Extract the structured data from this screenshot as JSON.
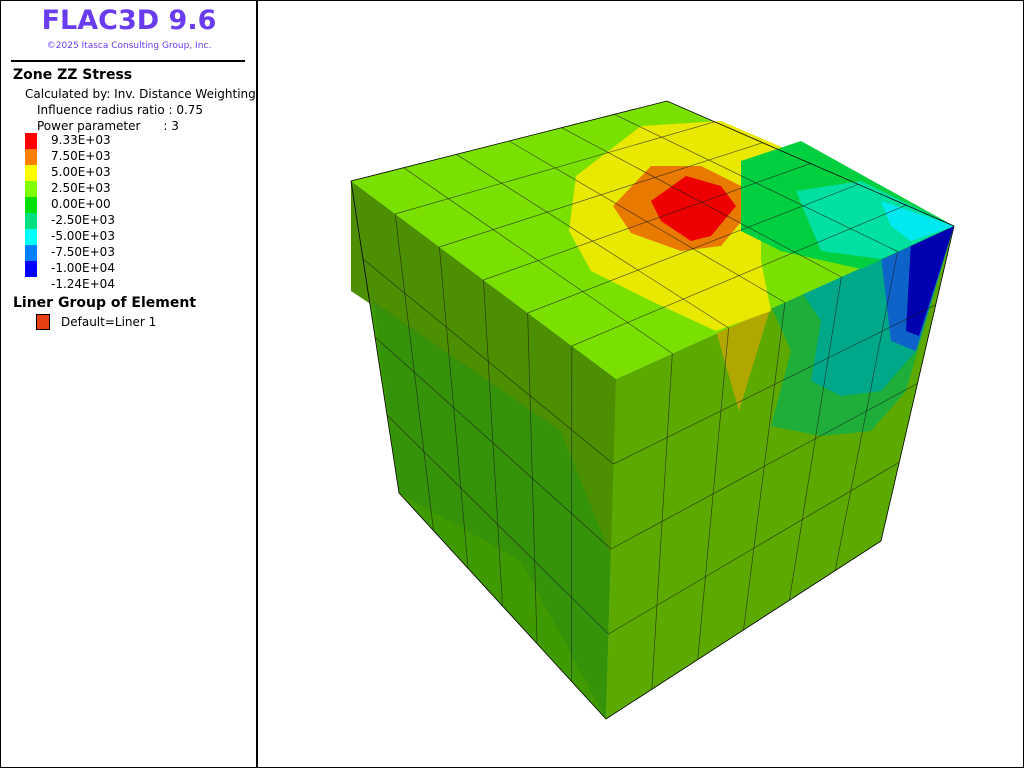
{
  "header": {
    "title": "FLAC3D 9.6",
    "copyright": "©2025 Itasca Consulting Group, Inc."
  },
  "contour": {
    "title": "Zone ZZ Stress",
    "method": "Calculated by: Inv. Distance Weighting",
    "radius": "Influence radius ratio : 0.75",
    "power": "Power parameter      : 3",
    "levels": [
      "9.33E+03",
      "7.50E+03",
      "5.00E+03",
      "2.50E+03",
      "0.00E+00",
      "-2.50E+03",
      "-5.00E+03",
      "-7.50E+03",
      "-1.00E+04",
      "-1.24E+04"
    ],
    "colors": [
      "#ff0000",
      "#ff8000",
      "#ffff00",
      "#80ff00",
      "#00e000",
      "#00e080",
      "#00ffff",
      "#0080ff",
      "#0000ff"
    ]
  },
  "liner": {
    "title": "Liner Group of Element",
    "label": "Default=Liner 1",
    "color": "#e84010"
  }
}
